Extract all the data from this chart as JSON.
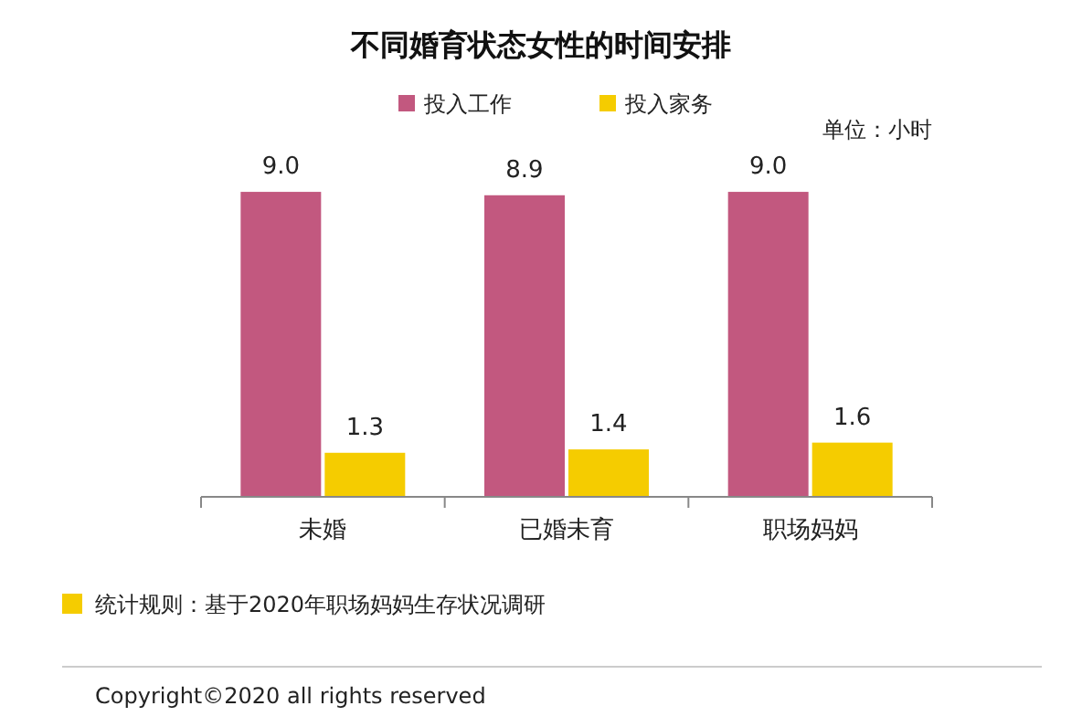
{
  "chart_data": {
    "type": "bar",
    "title": "不同婚育状态女性的时间安排",
    "categories": [
      "未婚",
      "已婚未育",
      "职场妈妈"
    ],
    "series": [
      {
        "name": "投入工作",
        "color": "#c2587f",
        "values": [
          9.0,
          8.9,
          9.0
        ],
        "value_labels": [
          "9.0",
          "8.9",
          "9.0"
        ]
      },
      {
        "name": "投入家务",
        "color": "#f5cc00",
        "values": [
          1.3,
          1.4,
          1.6
        ],
        "value_labels": [
          "1.3",
          "1.4",
          "1.6"
        ]
      }
    ],
    "legend": "top",
    "grid": false,
    "annotations": [
      "单位：小时",
      "统计规则：基于2020年职场妈妈生存状况调研",
      "Copyright©2020 all rights reserved"
    ]
  }
}
